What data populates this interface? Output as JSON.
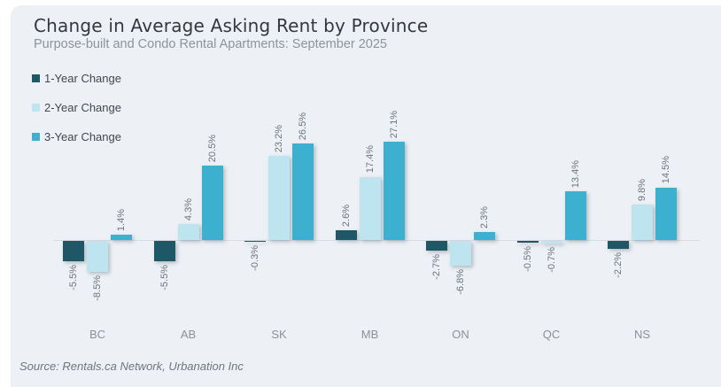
{
  "header": {
    "title": "Change in Average Asking Rent by Province",
    "subtitle": "Purpose-built and Condo Rental Apartments: September 2025"
  },
  "source": "Source: Rentals.ca Network, Urbanation Inc",
  "colors": {
    "card_background": "#edf1f5",
    "series_1_year": "#1e5766",
    "series_2_year": "#bde4ef",
    "series_3_year": "#3cb0ce"
  },
  "chart_data": {
    "type": "bar",
    "title": "Change in Average Asking Rent by Province",
    "subtitle": "Purpose-built and Condo Rental Apartments: September 2025",
    "categories": [
      "BC",
      "AB",
      "SK",
      "MB",
      "ON",
      "QC",
      "NS"
    ],
    "series": [
      {
        "name": "1-Year Change",
        "color": "#1e5766",
        "values": [
          -5.5,
          -5.5,
          -0.3,
          2.6,
          -2.7,
          -0.5,
          -2.2
        ]
      },
      {
        "name": "2-Year Change",
        "color": "#bde4ef",
        "values": [
          -8.5,
          4.3,
          23.2,
          17.4,
          -6.8,
          -0.7,
          9.8
        ]
      },
      {
        "name": "3-Year Change",
        "color": "#3cb0ce",
        "values": [
          1.4,
          20.5,
          26.5,
          27.1,
          2.3,
          13.4,
          14.5
        ]
      }
    ],
    "label_suffix": "%",
    "label_rotation": -90,
    "legend_position": "top-left",
    "grid": false,
    "xlabel": "",
    "ylabel": "",
    "ylim": [
      -10,
      30
    ]
  }
}
